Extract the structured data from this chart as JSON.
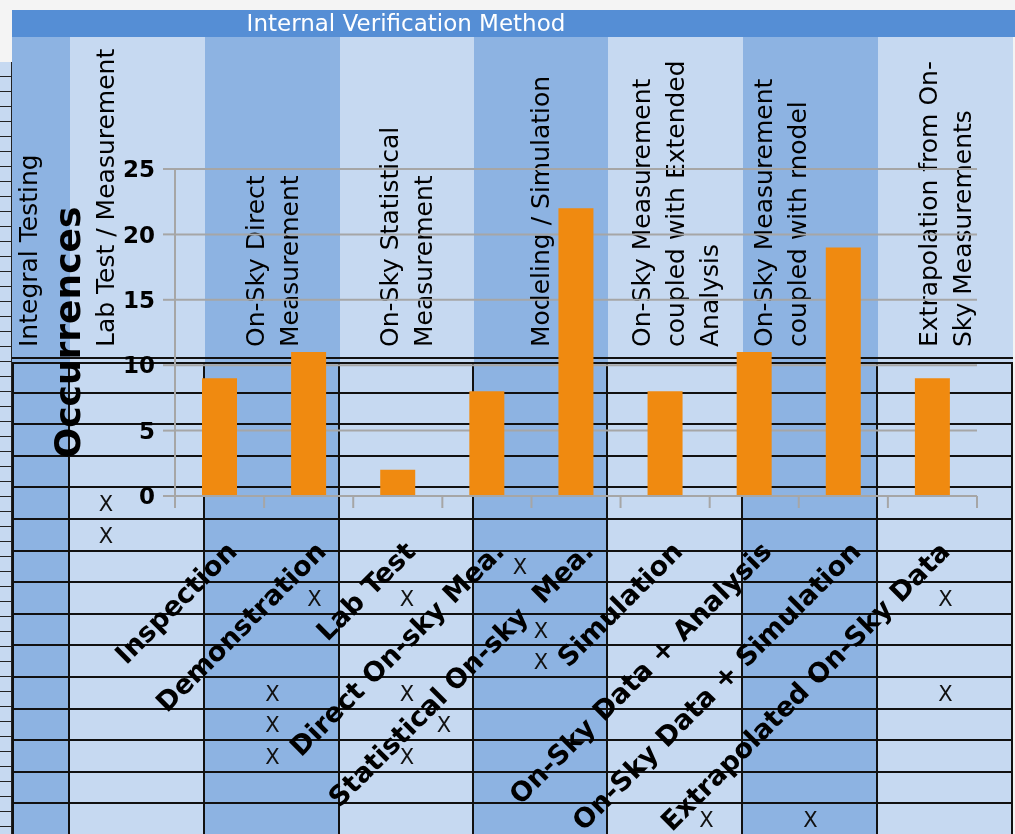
{
  "chart_data": [
    {
      "type": "other",
      "title": "Internal Verification Method",
      "categories": [
        "Integral Testing",
        "Lab Test / Measurement",
        "On-Sky Direct Measurement",
        "On-Sky Statistical Measurement",
        "Modeling / Simulation",
        "On-Sky Measurement coupled with Extended Analysis",
        "On-Sky Measurement coupled with model",
        "Extrapolation from On-Sky Measurements"
      ],
      "cell_labels": [
        [
          null,
          null,
          null,
          null,
          null,
          null,
          null,
          null
        ],
        [
          null,
          null,
          null,
          null,
          null,
          null,
          null,
          null
        ],
        [
          null,
          null,
          null,
          null,
          null,
          null,
          null,
          null
        ],
        [
          null,
          null,
          null,
          null,
          null,
          null,
          null,
          null
        ],
        [
          null,
          "X",
          null,
          null,
          null,
          null,
          null,
          null
        ],
        [
          null,
          "X",
          null,
          null,
          null,
          null,
          null,
          null
        ],
        [
          null,
          null,
          null,
          null,
          "X",
          null,
          null,
          null
        ],
        [
          null,
          null,
          "X",
          "X",
          null,
          null,
          null,
          "X"
        ],
        [
          null,
          null,
          null,
          null,
          "X",
          null,
          null,
          null
        ],
        [
          null,
          null,
          null,
          null,
          "X",
          null,
          null,
          null
        ],
        [
          null,
          null,
          "X",
          "X",
          null,
          null,
          null,
          "X"
        ],
        [
          null,
          null,
          "X",
          "X",
          null,
          null,
          null,
          null
        ],
        [
          null,
          null,
          "X",
          "X",
          null,
          null,
          null,
          null
        ],
        [
          null,
          null,
          null,
          null,
          null,
          null,
          null,
          null
        ],
        [
          null,
          null,
          null,
          null,
          null,
          "X",
          "X",
          null
        ]
      ]
    },
    {
      "type": "bar",
      "categories": [
        "Inspection",
        "Demonstration",
        "Lab Test",
        "Direct On-sky Mea.",
        "Statistical On-sky  Mea.",
        "Simulation",
        "On-Sky Data + Analysis",
        "On-Sky Data + Simulation",
        "Extrapolated On-Sky Data"
      ],
      "values": [
        9,
        11,
        2,
        8,
        22,
        8,
        11,
        19,
        9
      ],
      "color": "#f08a10",
      "ylabel": "Occurrences",
      "ylim": [
        0,
        25
      ],
      "yticks": [
        0,
        5,
        10,
        15,
        20,
        25
      ],
      "grid": "y"
    }
  ]
}
